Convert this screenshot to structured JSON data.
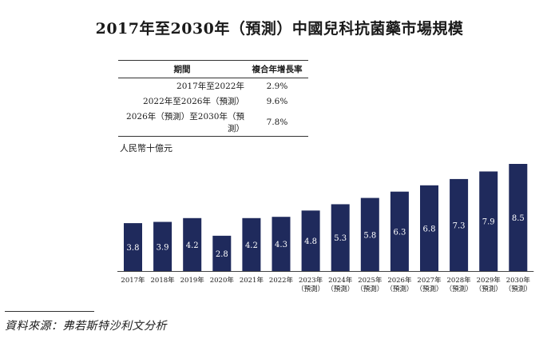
{
  "chart_data": {
    "type": "bar",
    "title": "2017年至2030年（預測）中國兒科抗菌藥市場規模",
    "ylabel": "人民幣十億元",
    "xlabel": "",
    "categories": [
      [
        "2017年"
      ],
      [
        "2018年"
      ],
      [
        "2019年"
      ],
      [
        "2020年"
      ],
      [
        "2021年"
      ],
      [
        "2022年"
      ],
      [
        "2023年",
        "（預測）"
      ],
      [
        "2024年",
        "（預測）"
      ],
      [
        "2025年",
        "（預測）"
      ],
      [
        "2026年",
        "（預測）"
      ],
      [
        "2027年",
        "（預測）"
      ],
      [
        "2028年",
        "（預測）"
      ],
      [
        "2029年",
        "（預測）"
      ],
      [
        "2030年",
        "（預測）"
      ]
    ],
    "values": [
      3.8,
      3.9,
      4.2,
      2.8,
      4.2,
      4.3,
      4.8,
      5.3,
      5.8,
      6.3,
      6.8,
      7.3,
      7.9,
      8.5
    ],
    "ylim": [
      0,
      8.5
    ],
    "bar_color": "#1f2a5c",
    "label_color": "#ffffff"
  },
  "cagr_table": {
    "headers": {
      "period": "期間",
      "cagr": "複合年增長率"
    },
    "rows": [
      {
        "period": "2017年至2022年",
        "cagr": "2.9%"
      },
      {
        "period": "2022年至2026年（預測）",
        "cagr": "9.6%"
      },
      {
        "period": "2026年（預測）至2030年（預測）",
        "cagr": "7.8%"
      }
    ]
  },
  "source": "資料來源：弗若斯特沙利文分析"
}
